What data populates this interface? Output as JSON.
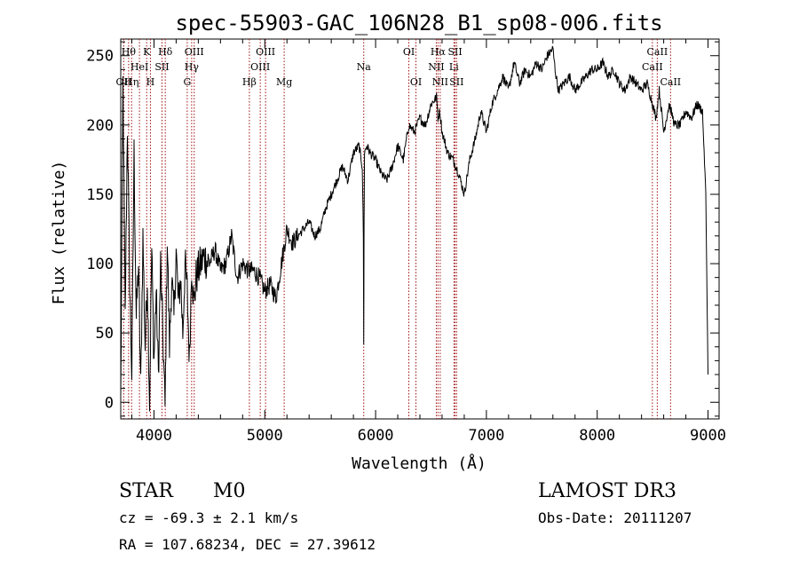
{
  "chart_data": {
    "type": "line",
    "title": "spec-55903-GAC_106N28_B1_sp08-006.fits",
    "xlabel": "Wavelength (Å)",
    "ylabel": "Flux (relative)",
    "xlim": [
      3700,
      9100
    ],
    "ylim": [
      -12,
      262
    ],
    "x_ticks": [
      4000,
      5000,
      6000,
      7000,
      8000,
      9000
    ],
    "x_tick_labels": [
      "4000",
      "5000",
      "6000",
      "7000",
      "8000",
      "9000"
    ],
    "y_ticks": [
      0,
      50,
      100,
      150,
      200,
      250
    ],
    "y_tick_labels": [
      "0",
      "50",
      "100",
      "150",
      "200",
      "250"
    ],
    "grid": false,
    "line_color": "#000000",
    "marker_color": "#a01010",
    "series": [
      {
        "x": [
          3700,
          3720,
          3740,
          3760,
          3780,
          3800,
          3820,
          3840,
          3860,
          3880,
          3900,
          3920,
          3940,
          3960,
          3980,
          4000,
          4020,
          4040,
          4060,
          4080,
          4100,
          4120,
          4140,
          4160,
          4180,
          4200,
          4220,
          4240,
          4260,
          4280,
          4300,
          4320,
          4340,
          4360,
          4380,
          4400,
          4450,
          4500,
          4550,
          4600,
          4650,
          4700,
          4750,
          4800,
          4850,
          4900,
          4950,
          5000,
          5050,
          5100,
          5150,
          5200,
          5250,
          5300,
          5350,
          5400,
          5450,
          5500,
          5550,
          5600,
          5650,
          5700,
          5750,
          5800,
          5850,
          5880,
          5890,
          5893,
          5896,
          5900,
          5920,
          5950,
          6000,
          6050,
          6100,
          6150,
          6200,
          6250,
          6300,
          6350,
          6400,
          6450,
          6500,
          6550,
          6563,
          6580,
          6600,
          6650,
          6700,
          6750,
          6800,
          6850,
          6900,
          6950,
          7000,
          7050,
          7100,
          7150,
          7200,
          7250,
          7300,
          7350,
          7400,
          7450,
          7500,
          7550,
          7600,
          7620,
          7650,
          7700,
          7750,
          7800,
          7850,
          7900,
          7950,
          8000,
          8050,
          8100,
          8150,
          8200,
          8250,
          8300,
          8350,
          8400,
          8450,
          8500,
          8530,
          8560,
          8600,
          8650,
          8700,
          8750,
          8800,
          8850,
          8900,
          8950,
          8980,
          9000
        ],
        "y": [
          0,
          230,
          60,
          200,
          90,
          20,
          180,
          60,
          100,
          10,
          120,
          40,
          90,
          0,
          110,
          30,
          80,
          20,
          100,
          50,
          -5,
          120,
          40,
          90,
          60,
          110,
          70,
          90,
          50,
          100,
          80,
          30,
          100,
          70,
          90,
          95,
          105,
          100,
          110,
          95,
          100,
          120,
          90,
          100,
          95,
          95,
          90,
          80,
          85,
          75,
          100,
          125,
          115,
          120,
          125,
          130,
          120,
          125,
          140,
          150,
          160,
          170,
          160,
          180,
          185,
          170,
          120,
          40,
          130,
          180,
          185,
          180,
          175,
          165,
          160,
          170,
          185,
          175,
          200,
          195,
          205,
          200,
          215,
          220,
          205,
          210,
          195,
          180,
          175,
          165,
          150,
          175,
          190,
          210,
          195,
          215,
          225,
          235,
          225,
          245,
          230,
          240,
          235,
          245,
          240,
          250,
          255,
          240,
          225,
          230,
          235,
          225,
          230,
          235,
          240,
          240,
          245,
          235,
          240,
          230,
          225,
          235,
          230,
          225,
          230,
          215,
          205,
          225,
          195,
          215,
          200,
          200,
          210,
          205,
          215,
          210,
          150,
          20
        ]
      }
    ],
    "line_markers": [
      {
        "w": 3771,
        "label": "Hθ",
        "row": 1
      },
      {
        "w": 3727,
        "label": "OII",
        "row": 3
      },
      {
        "w": 3798,
        "label": "Hη",
        "row": 3
      },
      {
        "w": 3869,
        "label": "HeI",
        "row": 2
      },
      {
        "w": 3934,
        "label": "K",
        "row": 1
      },
      {
        "w": 3968,
        "label": "H",
        "row": 3
      },
      {
        "w": 4072,
        "label": "SII",
        "row": 2
      },
      {
        "w": 4102,
        "label": "Hδ",
        "row": 1
      },
      {
        "w": 4300,
        "label": "G",
        "row": 3
      },
      {
        "w": 4340,
        "label": "Hγ",
        "row": 2
      },
      {
        "w": 4363,
        "label": "OIII",
        "row": 1
      },
      {
        "w": 4861,
        "label": "Hβ",
        "row": 3
      },
      {
        "w": 4959,
        "label": "OIII",
        "row": 2
      },
      {
        "w": 5007,
        "label": "OIII",
        "row": 1
      },
      {
        "w": 5175,
        "label": "Mg",
        "row": 3
      },
      {
        "w": 5893,
        "label": "Na",
        "row": 2
      },
      {
        "w": 6300,
        "label": "OI",
        "row": 1
      },
      {
        "w": 6364,
        "label": "OI",
        "row": 3
      },
      {
        "w": 6548,
        "label": "NII",
        "row": 2
      },
      {
        "w": 6563,
        "label": "Hα",
        "row": 1
      },
      {
        "w": 6583,
        "label": "NII",
        "row": 3
      },
      {
        "w": 6707,
        "label": "Li",
        "row": 2
      },
      {
        "w": 6717,
        "label": "SII",
        "row": 1
      },
      {
        "w": 6731,
        "label": "SII",
        "row": 3
      },
      {
        "w": 8498,
        "label": "CaII",
        "row": 2
      },
      {
        "w": 8542,
        "label": "CaII",
        "row": 1
      },
      {
        "w": 8662,
        "label": "CaII",
        "row": 3
      }
    ]
  },
  "info": {
    "class_label": "STAR",
    "subclass_label": "M0",
    "survey_label": "LAMOST DR3",
    "cz_line": "cz = -69.3 ± 2.1 km/s",
    "obsdate_line": "Obs-Date: 20111207",
    "coords_line": "RA = 107.68234, DEC =  27.39612"
  }
}
